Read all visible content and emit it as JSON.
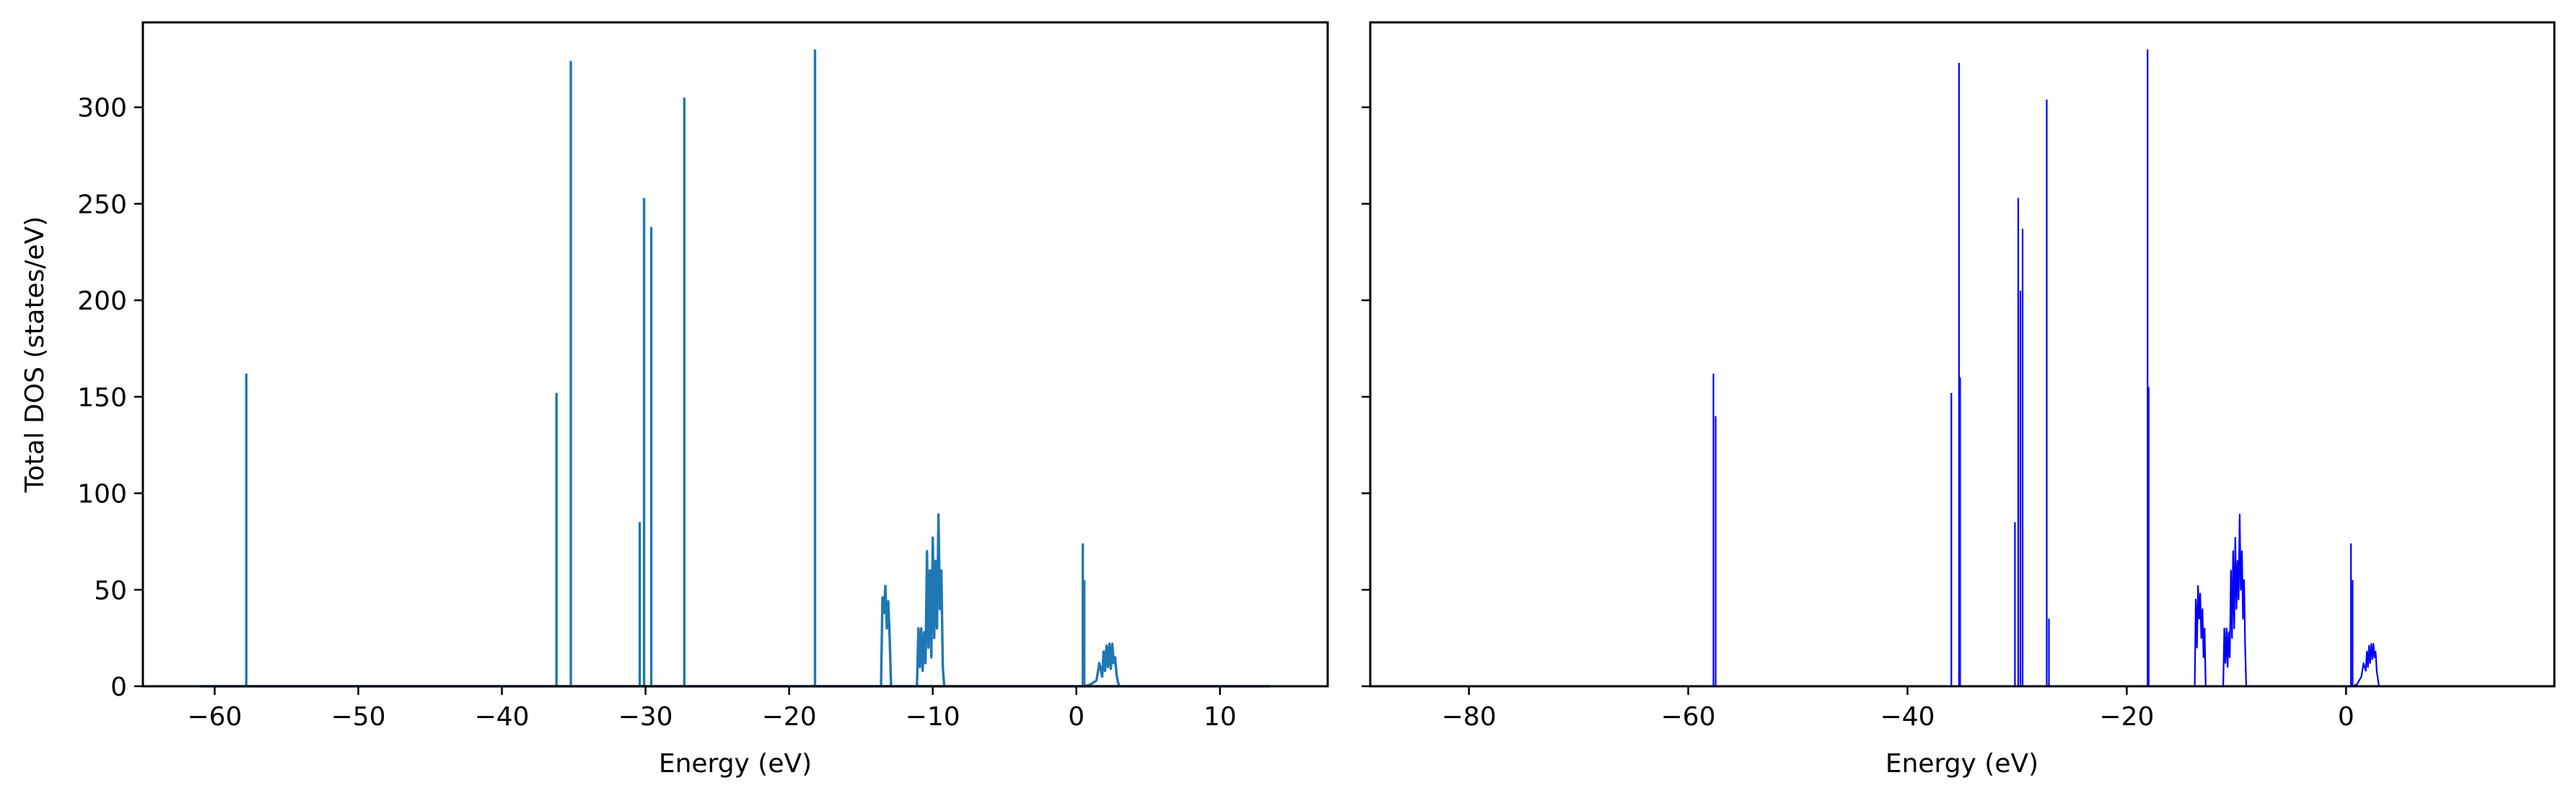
{
  "colors": {
    "left_series": "#1f77b4",
    "right_series": "#0000ff",
    "axis": "#000000",
    "background": "#ffffff"
  },
  "chart_data": [
    {
      "type": "line",
      "xlabel": "Energy (eV)",
      "ylabel": "Total DOS (states/eV)",
      "xlim": [
        -65,
        17.5
      ],
      "ylim": [
        0,
        344
      ],
      "xticks": [
        -60,
        -50,
        -40,
        -30,
        -20,
        -10,
        0,
        10
      ],
      "yticks": [
        0,
        50,
        100,
        150,
        200,
        250,
        300
      ],
      "grid": false,
      "baseline": [
        -61,
        13.5
      ],
      "spikes": [
        {
          "x": -57.8,
          "y": 162
        },
        {
          "x": -36.2,
          "y": 152
        },
        {
          "x": -35.2,
          "y": 324
        },
        {
          "x": -30.4,
          "y": 85
        },
        {
          "x": -30.1,
          "y": 253
        },
        {
          "x": -29.6,
          "y": 238
        },
        {
          "x": -27.3,
          "y": 305
        },
        {
          "x": -18.2,
          "y": 330
        },
        {
          "x": 0.45,
          "y": 74
        },
        {
          "x": 0.55,
          "y": 55
        }
      ],
      "bands": [
        {
          "x": [
            -13.6,
            -13.5,
            -13.4,
            -13.3,
            -13.2,
            -13.1,
            -13.0,
            -12.9
          ],
          "y": [
            0,
            46,
            38,
            52,
            30,
            44,
            25,
            0
          ]
        },
        {
          "x": [
            -11.1,
            -11.0,
            -10.9,
            -10.8,
            -10.7,
            -10.6,
            -10.5,
            -10.4,
            -10.3,
            -10.2,
            -10.1,
            -10.0,
            -9.9,
            -9.8,
            -9.7,
            -9.6,
            -9.5,
            -9.4,
            -9.3,
            -9.2
          ],
          "y": [
            0,
            30,
            10,
            30,
            8,
            28,
            12,
            70,
            20,
            60,
            15,
            77,
            25,
            65,
            30,
            89,
            40,
            60,
            10,
            0
          ]
        },
        {
          "x": [
            0.6,
            1.0,
            1.4,
            1.6,
            1.8,
            1.9,
            2.0,
            2.1,
            2.2,
            2.3,
            2.4,
            2.5,
            2.6,
            2.7,
            2.8,
            2.9,
            3.0
          ],
          "y": [
            0,
            1,
            3,
            12,
            5,
            18,
            8,
            21,
            10,
            22,
            9,
            22,
            12,
            15,
            6,
            2,
            0
          ]
        }
      ]
    },
    {
      "type": "line",
      "xlabel": "Energy (eV)",
      "ylabel": "",
      "xlim": [
        -89,
        19
      ],
      "ylim": [
        0,
        344
      ],
      "xticks": [
        -80,
        -60,
        -40,
        -20,
        0
      ],
      "yticks": [
        0,
        50,
        100,
        150,
        200,
        250,
        300
      ],
      "sharey": true,
      "grid": false,
      "baseline": [
        -84,
        14.5
      ],
      "spikes": [
        {
          "x": -57.7,
          "y": 162
        },
        {
          "x": -57.5,
          "y": 140
        },
        {
          "x": -36.0,
          "y": 152
        },
        {
          "x": -35.3,
          "y": 323
        },
        {
          "x": -35.2,
          "y": 160
        },
        {
          "x": -30.2,
          "y": 85
        },
        {
          "x": -29.9,
          "y": 253
        },
        {
          "x": -29.7,
          "y": 205
        },
        {
          "x": -29.5,
          "y": 237
        },
        {
          "x": -27.3,
          "y": 304
        },
        {
          "x": -27.1,
          "y": 35
        },
        {
          "x": -18.1,
          "y": 330
        },
        {
          "x": -18.0,
          "y": 155
        },
        {
          "x": 0.45,
          "y": 74
        },
        {
          "x": 0.6,
          "y": 55
        }
      ],
      "bands": [
        {
          "x": [
            -13.8,
            -13.7,
            -13.6,
            -13.5,
            -13.4,
            -13.3,
            -13.2,
            -13.1,
            -13.0,
            -12.9,
            -12.8
          ],
          "y": [
            0,
            45,
            20,
            52,
            35,
            48,
            25,
            40,
            15,
            30,
            0
          ]
        },
        {
          "x": [
            -11.2,
            -11.1,
            -11.0,
            -10.9,
            -10.8,
            -10.7,
            -10.6,
            -10.5,
            -10.4,
            -10.3,
            -10.2,
            -10.1,
            -10.0,
            -9.9,
            -9.8,
            -9.7,
            -9.6,
            -9.5,
            -9.4,
            -9.3,
            -9.2,
            -9.1
          ],
          "y": [
            0,
            30,
            12,
            30,
            10,
            28,
            15,
            60,
            25,
            70,
            30,
            77,
            40,
            65,
            45,
            89,
            50,
            70,
            35,
            55,
            20,
            0
          ]
        },
        {
          "x": [
            0.6,
            1.0,
            1.4,
            1.6,
            1.8,
            1.9,
            2.0,
            2.1,
            2.2,
            2.3,
            2.4,
            2.5,
            2.6,
            2.7,
            2.8,
            2.9,
            3.0
          ],
          "y": [
            0,
            1,
            5,
            12,
            8,
            18,
            10,
            21,
            12,
            22,
            14,
            22,
            15,
            18,
            8,
            4,
            0
          ]
        }
      ]
    }
  ]
}
